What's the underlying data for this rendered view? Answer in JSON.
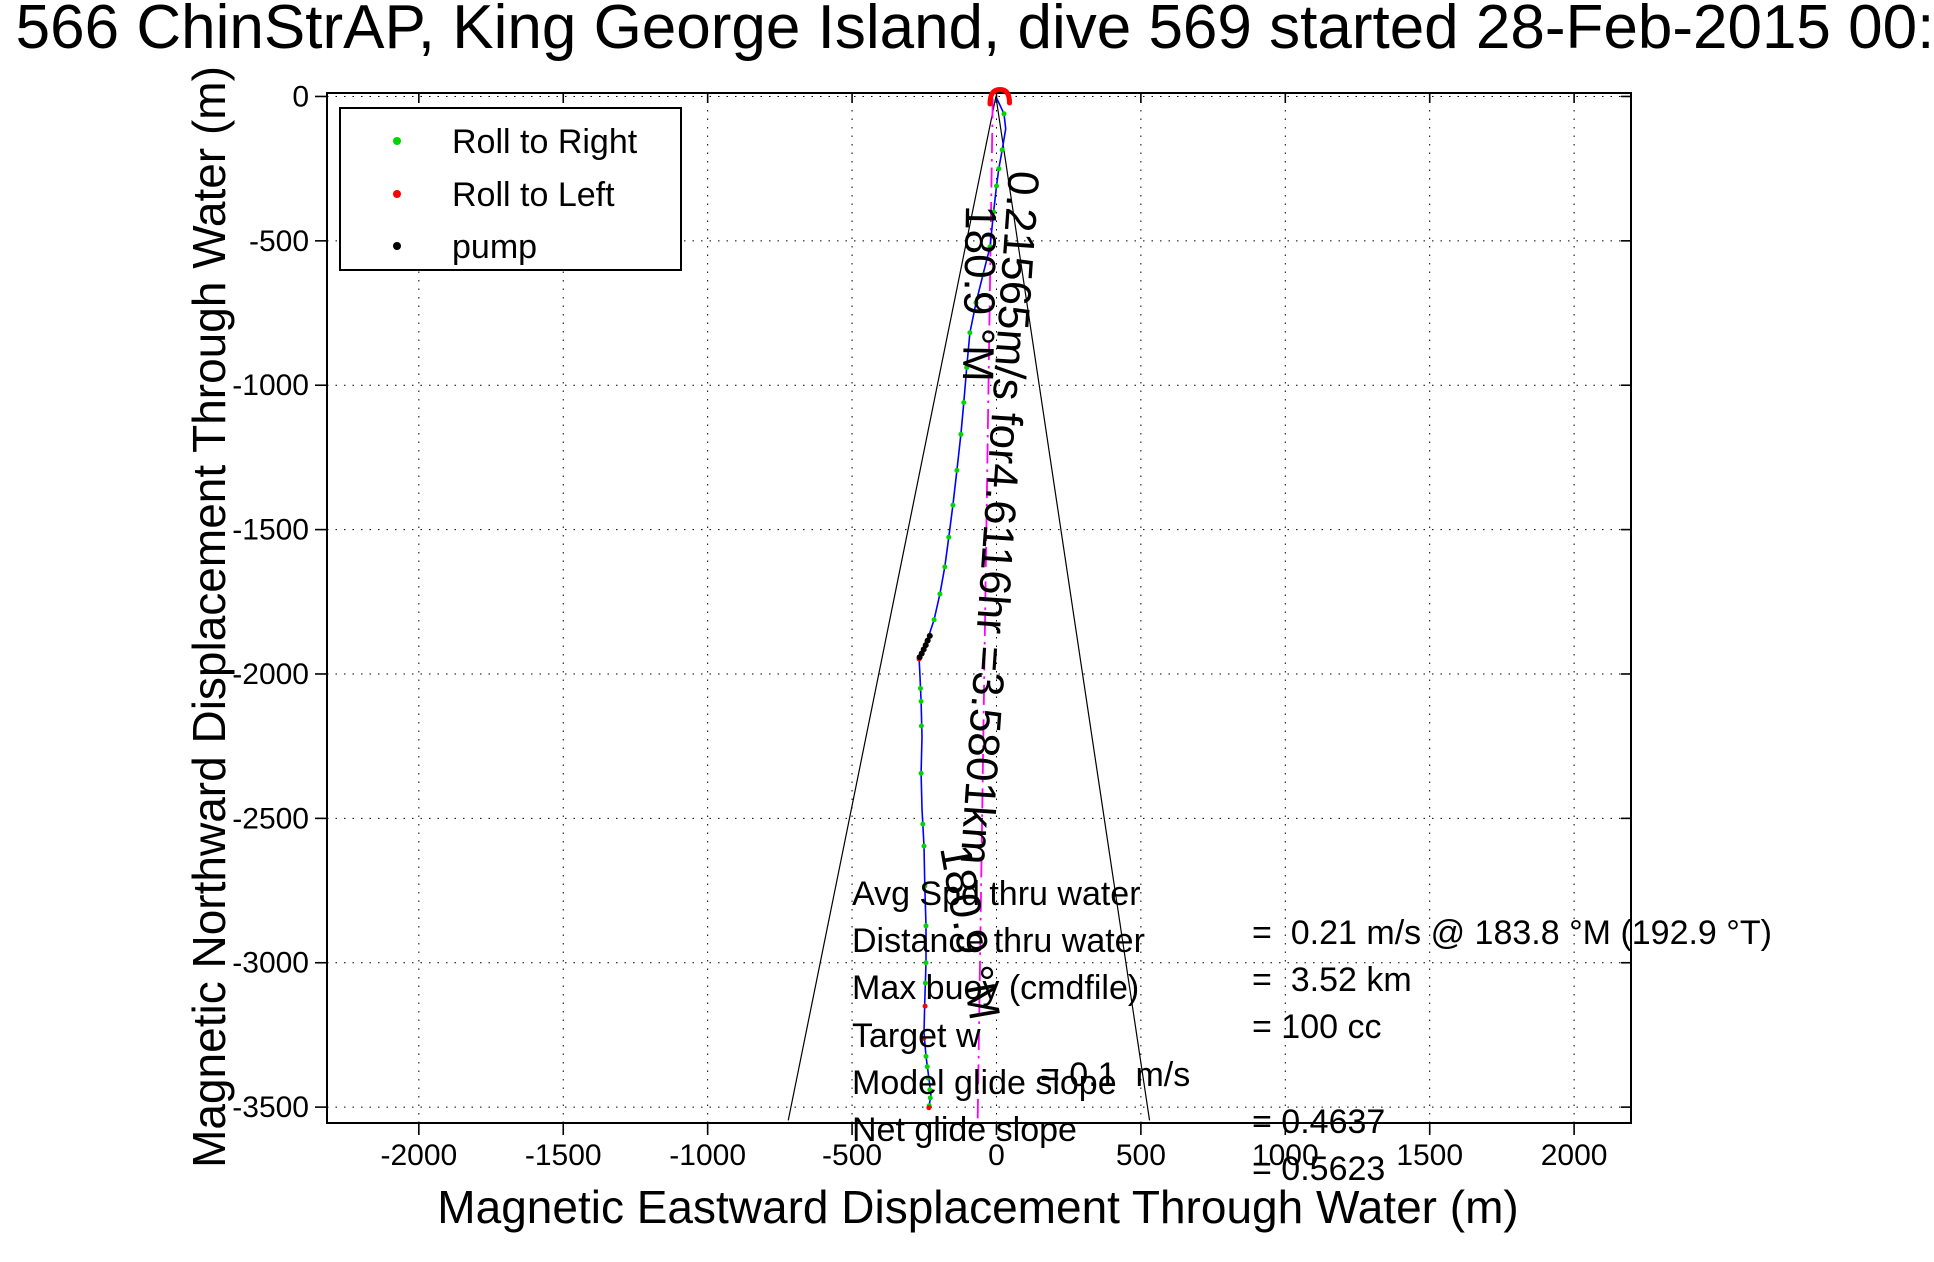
{
  "title": "566 ChinStrAP, King George Island, dive 569 started 28-Feb-2015 00:",
  "axes": {
    "xlabel": "Magnetic Eastward Displacement Through Water (m)",
    "ylabel": "Magnetic Northward Displacement Through Water (m)",
    "xticks": [
      -2000,
      -1500,
      -1000,
      -500,
      0,
      500,
      1000,
      1500,
      2000
    ],
    "yticks": [
      0,
      -500,
      -1000,
      -1500,
      -2000,
      -2500,
      -3000,
      -3500
    ]
  },
  "legend": {
    "items": [
      {
        "label": "Roll to Right",
        "color": "#00d500"
      },
      {
        "label": "Roll to Left",
        "color": "#ff0000"
      },
      {
        "label": "pump",
        "color": "#000000"
      }
    ]
  },
  "annotations": {
    "track_summary": "0.21565m/s for4.6116hr =3.5801km",
    "course_label_top": "180.9 °M",
    "course_label_bottom": "180.9 °M"
  },
  "stats": {
    "rows": [
      {
        "label": "Avg Spd thru water",
        "value": "=  0.21 m/s @ 183.8 °M (192.9 °T)"
      },
      {
        "label": "Distance thru water",
        "value": "=  3.52 km"
      },
      {
        "label": "Max buoy (cmdfile)",
        "value": "= 100 cc"
      },
      {
        "label": "Target w",
        "value": "= 0.1  m/s"
      },
      {
        "label": "Model glide slope",
        "value": "= 0.4637"
      },
      {
        "label": "Net glide slope",
        "value": "= 0.5623"
      }
    ]
  },
  "chart_data": {
    "type": "line",
    "title": "566 ChinStrAP, King George Island, dive 569 started 28-Feb-2015 00:",
    "xlabel": "Magnetic Eastward Displacement Through Water (m)",
    "ylabel": "Magnetic Northward Displacement Through Water (m)",
    "xlim": [
      -2318,
      2197
    ],
    "ylim": [
      -3555,
      12
    ],
    "grid": true,
    "legend_position": "upper-left",
    "series": [
      {
        "name": "dive track through water",
        "color": "#0000ff",
        "points": [
          [
            1,
            -7
          ],
          [
            26,
            -60
          ],
          [
            32,
            -112
          ],
          [
            20,
            -185
          ],
          [
            8,
            -250
          ],
          [
            0,
            -310
          ],
          [
            -10,
            -400
          ],
          [
            -22,
            -520
          ],
          [
            -47,
            -618
          ],
          [
            -71,
            -715
          ],
          [
            -92,
            -818
          ],
          [
            -103,
            -939
          ],
          [
            -113,
            -1060
          ],
          [
            -123,
            -1170
          ],
          [
            -137,
            -1295
          ],
          [
            -151,
            -1415
          ],
          [
            -165,
            -1526
          ],
          [
            -179,
            -1629
          ],
          [
            -196,
            -1723
          ],
          [
            -216,
            -1812
          ],
          [
            -241,
            -1888
          ],
          [
            -268,
            -1945
          ],
          [
            -265,
            -2002
          ],
          [
            -261,
            -2095
          ],
          [
            -258,
            -2216
          ],
          [
            -261,
            -2344
          ],
          [
            -258,
            -2468
          ],
          [
            -251,
            -2596
          ],
          [
            -248,
            -2734
          ],
          [
            -244,
            -2872
          ],
          [
            -244,
            -3000
          ],
          [
            -248,
            -3131
          ],
          [
            -251,
            -3241
          ],
          [
            -244,
            -3324
          ],
          [
            -234,
            -3400
          ],
          [
            -227,
            -3459
          ],
          [
            -234,
            -3500
          ]
        ]
      }
    ],
    "markers": {
      "roll_to_right": {
        "color": "#00d500",
        "points": [
          [
            26,
            -60
          ],
          [
            20,
            -185
          ],
          [
            8,
            -250
          ],
          [
            0,
            -310
          ],
          [
            -10,
            -400
          ],
          [
            -22,
            -520
          ],
          [
            -47,
            -618
          ],
          [
            -71,
            -715
          ],
          [
            -92,
            -818
          ],
          [
            -103,
            -939
          ],
          [
            -113,
            -1060
          ],
          [
            -123,
            -1170
          ],
          [
            -137,
            -1295
          ],
          [
            -151,
            -1415
          ],
          [
            -165,
            -1526
          ],
          [
            -179,
            -1629
          ],
          [
            -196,
            -1723
          ],
          [
            -216,
            -1812
          ],
          [
            -241,
            -1888
          ],
          [
            -263,
            -2050
          ],
          [
            -261,
            -2095
          ],
          [
            -260,
            -2180
          ],
          [
            -261,
            -2344
          ],
          [
            -255,
            -2520
          ],
          [
            -251,
            -2596
          ],
          [
            -248,
            -2734
          ],
          [
            -244,
            -2872
          ],
          [
            -244,
            -3000
          ],
          [
            -246,
            -3070
          ],
          [
            -244,
            -3324
          ],
          [
            -240,
            -3360
          ],
          [
            -236,
            -3400
          ],
          [
            -231,
            -3440
          ],
          [
            -229,
            -3468
          ],
          [
            -233,
            -3495
          ]
        ]
      },
      "roll_to_left": {
        "color": "#ff0000",
        "points": [
          [
            -268,
            -1948
          ],
          [
            -247,
            -3150
          ],
          [
            -252,
            -3262
          ],
          [
            -234,
            -3502
          ]
        ]
      },
      "pump": {
        "color": "#000000",
        "points": [
          [
            -231,
            -1868
          ],
          [
            -238,
            -1884
          ],
          [
            -245,
            -1900
          ],
          [
            -252,
            -1915
          ],
          [
            -259,
            -1929
          ],
          [
            -266,
            -1942
          ]
        ]
      }
    },
    "desired_course": {
      "color": "#ff00ff",
      "style": "dash-dot",
      "bearing_deg_magnetic": 180.9,
      "points": [
        [
          -13,
          -7
        ],
        [
          -65,
          -3539
        ]
      ]
    },
    "bearing_cone": {
      "color": "#000000",
      "apex": [
        -2,
        0
      ],
      "ends": [
        [
          -721,
          -3546
        ],
        [
          530,
          -3546
        ]
      ]
    },
    "dive_start": {
      "marker": "red-arc",
      "color": "#ff0000",
      "position": [
        1,
        -20
      ]
    }
  }
}
